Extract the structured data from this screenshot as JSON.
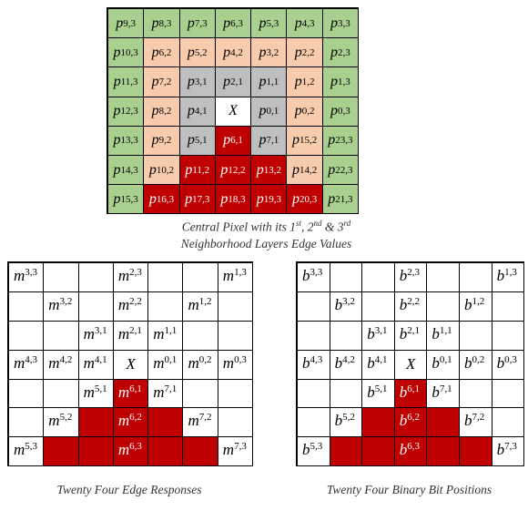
{
  "top_caption": {
    "line1_prefix": "Central Pixel with its 1",
    "sup1": "st",
    "sep1": ", 2",
    "sup2": "nd",
    "sep2": " & 3",
    "sup3": "rd",
    "line2": "Neighborhood Layers Edge Values"
  },
  "left_caption": "Twenty Four Edge Responses",
  "right_caption": "Twenty Four Binary Bit Positions",
  "top_grid": [
    [
      [
        "p",
        "9,3",
        "g"
      ],
      [
        "p",
        "8,3",
        "g"
      ],
      [
        "p",
        "7,3",
        "g"
      ],
      [
        "p",
        "6,3",
        "g"
      ],
      [
        "p",
        "5,3",
        "g"
      ],
      [
        "p",
        "4,3",
        "g"
      ],
      [
        "p",
        "3,3",
        "g"
      ]
    ],
    [
      [
        "p",
        "10,3",
        "g"
      ],
      [
        "p",
        "6,2",
        "o"
      ],
      [
        "p",
        "5,2",
        "o"
      ],
      [
        "p",
        "4,2",
        "o"
      ],
      [
        "p",
        "3,2",
        "o"
      ],
      [
        "p",
        "2,2",
        "o"
      ],
      [
        "p",
        "2,3",
        "g"
      ]
    ],
    [
      [
        "p",
        "11,3",
        "g"
      ],
      [
        "p",
        "7,2",
        "o"
      ],
      [
        "p",
        "3,1",
        "s"
      ],
      [
        "p",
        "2,1",
        "s"
      ],
      [
        "p",
        "1,1",
        "s"
      ],
      [
        "p",
        "1,2",
        "o"
      ],
      [
        "p",
        "1,3",
        "g"
      ]
    ],
    [
      [
        "p",
        "12,3",
        "g"
      ],
      [
        "p",
        "8,2",
        "o"
      ],
      [
        "p",
        "4,1",
        "s"
      ],
      [
        "X",
        "",
        "w"
      ],
      [
        "p",
        "0,1",
        "s"
      ],
      [
        "p",
        "0,2",
        "o"
      ],
      [
        "p",
        "0,3",
        "g"
      ]
    ],
    [
      [
        "p",
        "13,3",
        "g"
      ],
      [
        "p",
        "9,2",
        "o"
      ],
      [
        "p",
        "5,1",
        "s"
      ],
      [
        "p",
        "6,1",
        "r"
      ],
      [
        "p",
        "7,1",
        "s"
      ],
      [
        "p",
        "15,2",
        "o"
      ],
      [
        "p",
        "23,3",
        "g"
      ]
    ],
    [
      [
        "p",
        "14,3",
        "g"
      ],
      [
        "p",
        "10,2",
        "o"
      ],
      [
        "p",
        "11,2",
        "r"
      ],
      [
        "p",
        "12,2",
        "r"
      ],
      [
        "p",
        "13,2",
        "r"
      ],
      [
        "p",
        "14,2",
        "o"
      ],
      [
        "p",
        "22,3",
        "g"
      ]
    ],
    [
      [
        "p",
        "15,3",
        "g"
      ],
      [
        "p",
        "16,3",
        "r"
      ],
      [
        "p",
        "17,3",
        "r"
      ],
      [
        "p",
        "18,3",
        "r"
      ],
      [
        "p",
        "19,3",
        "r"
      ],
      [
        "p",
        "20,3",
        "r"
      ],
      [
        "p",
        "21,3",
        "g"
      ]
    ]
  ],
  "left_grid": [
    [
      [
        "m",
        "3,3",
        "w"
      ],
      [
        "",
        "",
        "w"
      ],
      [
        "",
        "",
        "w"
      ],
      [
        "m",
        "2,3",
        "w"
      ],
      [
        "",
        "",
        "w"
      ],
      [
        "",
        "",
        "w"
      ],
      [
        "m",
        "1,3",
        "w"
      ]
    ],
    [
      [
        "",
        "",
        "w"
      ],
      [
        "m",
        "3,2",
        "w"
      ],
      [
        "",
        "",
        "w"
      ],
      [
        "m",
        "2,2",
        "w"
      ],
      [
        "",
        "",
        "w"
      ],
      [
        "m",
        "1,2",
        "w"
      ],
      [
        "",
        "",
        "w"
      ]
    ],
    [
      [
        "",
        "",
        "w"
      ],
      [
        "",
        "",
        "w"
      ],
      [
        "m",
        "3,1",
        "w"
      ],
      [
        "m",
        "2,1",
        "w"
      ],
      [
        "m",
        "1,1",
        "w"
      ],
      [
        "",
        "",
        "w"
      ],
      [
        "",
        "",
        "w"
      ]
    ],
    [
      [
        "m",
        "4,3",
        "w"
      ],
      [
        "m",
        "4,2",
        "w"
      ],
      [
        "m",
        "4,1",
        "w"
      ],
      [
        "X",
        "",
        "c"
      ],
      [
        "m",
        "0,1",
        "w"
      ],
      [
        "m",
        "0,2",
        "w"
      ],
      [
        "m",
        "0,3",
        "w"
      ]
    ],
    [
      [
        "",
        "",
        "w"
      ],
      [
        "",
        "",
        "w"
      ],
      [
        "m",
        "5,1",
        "w"
      ],
      [
        "m",
        "6,1",
        "r"
      ],
      [
        "m",
        "7,1",
        "w"
      ],
      [
        "",
        "",
        "w"
      ],
      [
        "",
        "",
        "w"
      ]
    ],
    [
      [
        "",
        "",
        "w"
      ],
      [
        "m",
        "5,2",
        "w"
      ],
      [
        "",
        "",
        "r"
      ],
      [
        "m",
        "6,2",
        "r"
      ],
      [
        "",
        "",
        "r"
      ],
      [
        "m",
        "7,2",
        "w"
      ],
      [
        "",
        "",
        "w"
      ]
    ],
    [
      [
        "m",
        "5,3",
        "w"
      ],
      [
        "",
        "",
        "r"
      ],
      [
        "",
        "",
        "r"
      ],
      [
        "m",
        "6,3",
        "r"
      ],
      [
        "",
        "",
        "r"
      ],
      [
        "",
        "",
        "r"
      ],
      [
        "m",
        "7,3",
        "w"
      ]
    ]
  ],
  "right_grid": [
    [
      [
        "b",
        "3,3",
        "w"
      ],
      [
        "",
        "",
        "w"
      ],
      [
        "",
        "",
        "w"
      ],
      [
        "b",
        "2,3",
        "w"
      ],
      [
        "",
        "",
        "w"
      ],
      [
        "",
        "",
        "w"
      ],
      [
        "b",
        "1,3",
        "w"
      ]
    ],
    [
      [
        "",
        "",
        "w"
      ],
      [
        "b",
        "3,2",
        "w"
      ],
      [
        "",
        "",
        "w"
      ],
      [
        "b",
        "2,2",
        "w"
      ],
      [
        "",
        "",
        "w"
      ],
      [
        "b",
        "1,2",
        "w"
      ],
      [
        "",
        "",
        "w"
      ]
    ],
    [
      [
        "",
        "",
        "w"
      ],
      [
        "",
        "",
        "w"
      ],
      [
        "b",
        "3,1",
        "w"
      ],
      [
        "b",
        "2,1",
        "w"
      ],
      [
        "b",
        "1,1",
        "w"
      ],
      [
        "",
        "",
        "w"
      ],
      [
        "",
        "",
        "w"
      ]
    ],
    [
      [
        "b",
        "4,3",
        "w"
      ],
      [
        "b",
        "4,2",
        "w"
      ],
      [
        "b",
        "4,1",
        "w"
      ],
      [
        "X",
        "",
        "c"
      ],
      [
        "b",
        "0,1",
        "w"
      ],
      [
        "b",
        "0,2",
        "w"
      ],
      [
        "b",
        "0,3",
        "w"
      ]
    ],
    [
      [
        "",
        "",
        "w"
      ],
      [
        "",
        "",
        "w"
      ],
      [
        "b",
        "5,1",
        "w"
      ],
      [
        "b",
        "6,1",
        "r"
      ],
      [
        "b",
        "7,1",
        "w"
      ],
      [
        "",
        "",
        "w"
      ],
      [
        "",
        "",
        "w"
      ]
    ],
    [
      [
        "",
        "",
        "w"
      ],
      [
        "b",
        "5,2",
        "w"
      ],
      [
        "",
        "",
        "r"
      ],
      [
        "b",
        "6,2",
        "r"
      ],
      [
        "",
        "",
        "r"
      ],
      [
        "b",
        "7,2",
        "w"
      ],
      [
        "",
        "",
        "w"
      ]
    ],
    [
      [
        "b",
        "5,3",
        "w"
      ],
      [
        "",
        "",
        "r"
      ],
      [
        "",
        "",
        "r"
      ],
      [
        "b",
        "6,3",
        "r"
      ],
      [
        "",
        "",
        "r"
      ],
      [
        "",
        "",
        "r"
      ],
      [
        "b",
        "7,3",
        "w"
      ]
    ]
  ],
  "colors": {
    "g": "#a9d08e",
    "o": "#f8cbad",
    "s": "#bfbfbf",
    "w": "#ffffff",
    "r": "#c00000"
  }
}
